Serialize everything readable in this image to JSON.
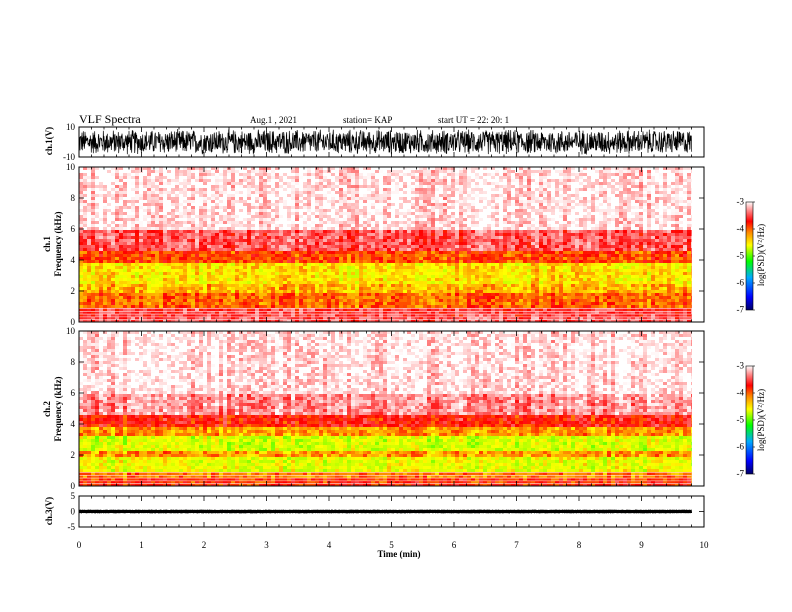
{
  "header": {
    "title": "VLF Spectra",
    "date": "Aug.1 , 2021",
    "station": "station= KAP",
    "start": "start UT = 22: 20: 1"
  },
  "chart_data": [
    {
      "type": "line",
      "name": "ch1-waveform",
      "ylabel": "ch.1(V)",
      "ylim": [
        -10,
        10
      ],
      "y_tick_labels": [
        "10",
        "-10"
      ],
      "xlim": [
        0,
        10
      ],
      "data_end_min": 9.8
    },
    {
      "type": "heatmap",
      "name": "ch1-spectrogram",
      "ylabel_lines": [
        "ch.1",
        "Frequency (kHz)"
      ],
      "ylim": [
        0,
        10
      ],
      "y_tick_labels": [
        "0",
        "2",
        "4",
        "6",
        "8",
        "10"
      ],
      "xlim": [
        0,
        10
      ],
      "data_end_min": 9.8,
      "colorbar": {
        "label": "log(PSD)(V²/Hz)",
        "range": [
          -7,
          -3
        ],
        "tick_labels": [
          "-3",
          "-4",
          "-5",
          "-6",
          "-7"
        ]
      },
      "band_levels_kHz": [
        {
          "f0": 0,
          "f1": 0.3,
          "level": -3.6
        },
        {
          "f0": 0.3,
          "f1": 1.0,
          "level": -3.7
        },
        {
          "f0": 1.0,
          "f1": 1.8,
          "level": -4.2
        },
        {
          "f0": 1.8,
          "f1": 2.5,
          "level": -4.5
        },
        {
          "f0": 2.5,
          "f1": 3.8,
          "level": -4.7
        },
        {
          "f0": 3.8,
          "f1": 4.5,
          "level": -4.1
        },
        {
          "f0": 4.5,
          "f1": 6.0,
          "level": -3.6
        },
        {
          "f0": 6.0,
          "f1": 10.0,
          "level": -3.1
        }
      ]
    },
    {
      "type": "heatmap",
      "name": "ch2-spectrogram",
      "ylabel_lines": [
        "ch.2",
        "Frequency (kHz)"
      ],
      "ylim": [
        0,
        10
      ],
      "y_tick_labels": [
        "0",
        "2",
        "4",
        "6",
        "8",
        "10"
      ],
      "xlim": [
        0,
        10
      ],
      "data_end_min": 9.8,
      "colorbar": {
        "label": "log(PSD)(V²/Hz)",
        "range": [
          -7,
          -3
        ],
        "tick_labels": [
          "-3",
          "-4",
          "-5",
          "-6",
          "-7"
        ]
      },
      "band_levels_kHz": [
        {
          "f0": 0,
          "f1": 0.5,
          "level": -4.0
        },
        {
          "f0": 0.5,
          "f1": 1.0,
          "level": -4.3
        },
        {
          "f0": 1.0,
          "f1": 1.8,
          "level": -4.9
        },
        {
          "f0": 1.8,
          "f1": 2.2,
          "level": -4.4
        },
        {
          "f0": 2.2,
          "f1": 3.3,
          "level": -5.0
        },
        {
          "f0": 3.3,
          "f1": 3.8,
          "level": -4.4
        },
        {
          "f0": 3.8,
          "f1": 4.5,
          "level": -3.9
        },
        {
          "f0": 4.5,
          "f1": 6.0,
          "level": -3.4
        },
        {
          "f0": 6.0,
          "f1": 10.0,
          "level": -3.1
        }
      ]
    },
    {
      "type": "line",
      "name": "ch3-waveform",
      "ylabel": "ch.3(V)",
      "ylim": [
        -5,
        5
      ],
      "y_tick_labels": [
        "5",
        "0",
        "-5"
      ],
      "xlim": [
        0,
        10
      ],
      "data_end_min": 9.8,
      "signal_amplitude_V": 0.6
    }
  ],
  "x_axis": {
    "label": "Time (min)",
    "tick_labels": [
      "0",
      "1",
      "2",
      "3",
      "4",
      "5",
      "6",
      "7",
      "8",
      "9",
      "10"
    ]
  },
  "colors": {
    "colormap": [
      "#000066",
      "#0000ff",
      "#00aaff",
      "#00ff00",
      "#aaff00",
      "#ffff00",
      "#ff8800",
      "#ff0000",
      "#ff8888",
      "#ffffff"
    ]
  }
}
